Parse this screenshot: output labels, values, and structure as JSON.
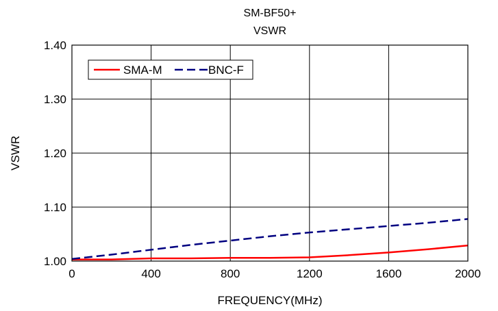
{
  "chart_data": {
    "type": "line",
    "title": [
      "SM-BF50+",
      "VSWR"
    ],
    "xlabel": "FREQUENCY(MHz)",
    "ylabel": "VSWR",
    "xlim": [
      0,
      2000
    ],
    "ylim": [
      1.0,
      1.4
    ],
    "x_ticks": [
      "0",
      "400",
      "800",
      "1200",
      "1600",
      "2000"
    ],
    "y_ticks": [
      "1.00",
      "1.10",
      "1.20",
      "1.30",
      "1.40"
    ],
    "grid": true,
    "legend_position": "top-left",
    "series": [
      {
        "name": "SMA-M",
        "color": "#ff0000",
        "dash": "solid",
        "x": [
          0,
          200,
          400,
          600,
          800,
          1000,
          1200,
          1400,
          1600,
          1800,
          2000
        ],
        "y": [
          1.003,
          1.003,
          1.005,
          1.005,
          1.006,
          1.006,
          1.007,
          1.011,
          1.016,
          1.022,
          1.029
        ]
      },
      {
        "name": "BNC-F",
        "color": "#000080",
        "dash": "dashed",
        "x": [
          0,
          200,
          400,
          600,
          800,
          1000,
          1200,
          1400,
          1600,
          1800,
          2000
        ],
        "y": [
          1.004,
          1.012,
          1.021,
          1.03,
          1.038,
          1.046,
          1.053,
          1.059,
          1.065,
          1.071,
          1.078
        ]
      }
    ]
  }
}
